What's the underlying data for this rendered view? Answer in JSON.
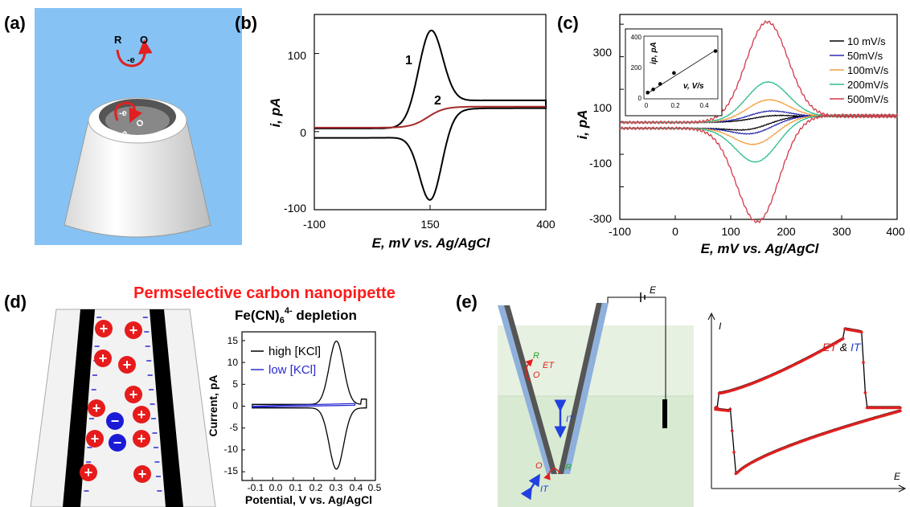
{
  "panels": {
    "a": {
      "label": "(a)",
      "outer_R": "R",
      "outer_O": "O",
      "outer_e": "-e",
      "inner_e": "-e",
      "inner_R": "R",
      "inner_O": "O"
    },
    "b": {
      "label": "(b)",
      "ylabel": "i, pA",
      "xlabel": "E, mV vs. Ag/AgCl",
      "yticks": [
        "100",
        "0",
        "-100"
      ],
      "xticks": [
        "-100",
        "150",
        "400"
      ],
      "curve_labels": [
        "1",
        "2"
      ]
    },
    "c": {
      "label": "(c)",
      "ylabel": "i, pA",
      "xlabel": "E, mV vs. Ag/AgCl",
      "yticks": [
        "300",
        "100",
        "-100",
        "-300"
      ],
      "xticks": [
        "-100",
        "0",
        "100",
        "200",
        "300",
        "400"
      ],
      "legend": [
        "10 mV/s",
        "50mV/s",
        "100mV/s",
        "200mV/s",
        "500mV/s"
      ],
      "inset": {
        "ylabel": "ip, pA",
        "xlabel": "v, V/s",
        "yticks": [
          "400",
          "200",
          "0"
        ],
        "xticks": [
          "0",
          "0.2",
          "0.4"
        ]
      }
    },
    "d": {
      "label": "(d)",
      "title": "Permselective carbon nanopipette",
      "subtitle_pre": "Fe(CN)",
      "subtitle_sub": "6",
      "subtitle_sup": "4-",
      "subtitle_post": " depletion",
      "ylabel": "Current, pA",
      "xlabel": "Potential,  V vs. Ag/AgCl",
      "yticks": [
        "15",
        "10",
        "5",
        "0",
        "-5",
        "-10",
        "-15"
      ],
      "xticks": [
        "-0.1",
        "0.0",
        "0.1",
        "0.2",
        "0.3",
        "0.4",
        "0.5"
      ],
      "legend": [
        "high [KCl]",
        "low [KCl]"
      ],
      "plus": "+",
      "minus": "−"
    },
    "e": {
      "label": "(e)",
      "E_label": "E",
      "R": "R",
      "O": "O",
      "ET": "ET",
      "IT": "IT",
      "axis_I": "I",
      "axis_E": "E",
      "legend_ET": "ET",
      "legend_amp": " & ",
      "legend_IT": "IT"
    }
  },
  "colors": {
    "sky": "#86c3f4",
    "red_text": "#ff1a1a",
    "curve2": "#a52a2a",
    "green_bg": "#d9ead3"
  },
  "chart_data": [
    {
      "id": "b",
      "type": "line",
      "xlabel": "E, mV vs. Ag/AgCl",
      "ylabel": "i, pA",
      "xlim": [
        -100,
        400
      ],
      "ylim": [
        -100,
        150
      ],
      "series": [
        {
          "name": "1",
          "peak_forward": [
            150,
            142
          ],
          "peak_reverse": [
            152,
            -86
          ],
          "plateau_high": 40,
          "plateau_low": -8
        },
        {
          "name": "2",
          "plateau_high": 32,
          "plateau_low": 5,
          "wave_center": 145
        }
      ]
    },
    {
      "id": "c",
      "type": "line",
      "xlabel": "E, mV vs. Ag/AgCl",
      "ylabel": "i, pA",
      "xlim": [
        -100,
        400
      ],
      "ylim": [
        -300,
        330
      ],
      "series": [
        {
          "name": "10 mV/s",
          "peak": 25,
          "color": "#000000"
        },
        {
          "name": "50mV/s",
          "peak": 40,
          "color": "#2b2bb0"
        },
        {
          "name": "100mV/s",
          "peak": 75,
          "color": "#f0a040"
        },
        {
          "name": "200mV/s",
          "peak": 130,
          "color": "#2ebd8a"
        },
        {
          "name": "500mV/s",
          "peak": 315,
          "color": "#d03a48"
        }
      ],
      "inset": {
        "type": "scatter",
        "xlabel": "v, V/s",
        "ylabel": "ip, pA",
        "x": [
          0.01,
          0.05,
          0.1,
          0.2,
          0.5
        ],
        "y": [
          40,
          60,
          95,
          165,
          305
        ]
      }
    },
    {
      "id": "d",
      "type": "line",
      "xlabel": "Potential,  V vs. Ag/AgCl",
      "ylabel": "Current, pA",
      "xlim": [
        -0.15,
        0.5
      ],
      "ylim": [
        -17,
        17
      ],
      "series": [
        {
          "name": "high [KCl]",
          "peak_forward": [
            0.31,
            14.5
          ],
          "peak_reverse": [
            0.31,
            -14
          ]
        },
        {
          "name": "low [KCl]",
          "max": 0.6
        }
      ]
    },
    {
      "id": "e",
      "type": "line",
      "xlabel": "E",
      "ylabel": "I",
      "series": [
        {
          "name": "ET & IT"
        }
      ]
    }
  ]
}
